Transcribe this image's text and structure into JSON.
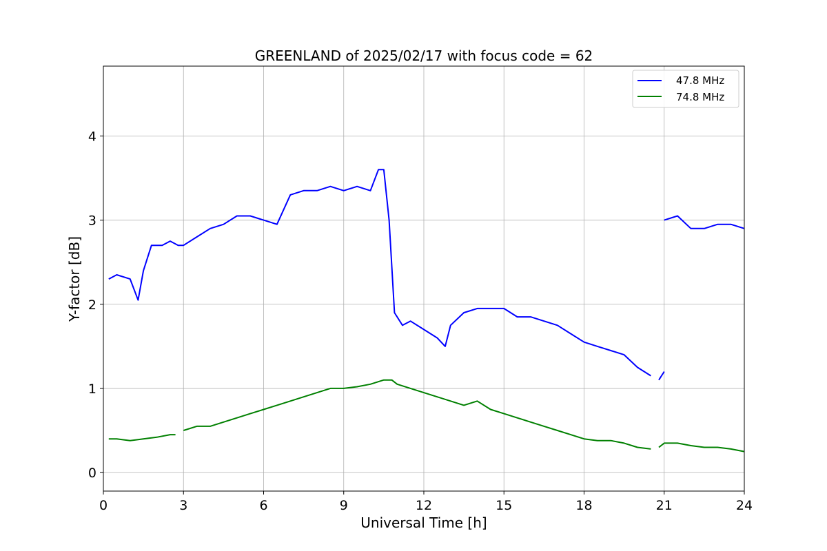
{
  "chart_data": {
    "type": "line",
    "title": "GREENLAND of 2025/02/17 with focus code = 62",
    "xlabel": "Universal Time [h]",
    "ylabel": "Y-factor [dB]",
    "xlim": [
      0,
      24
    ],
    "ylim": [
      -0.22,
      4.83
    ],
    "xticks": [
      "0",
      "3",
      "6",
      "9",
      "12",
      "15",
      "18",
      "21",
      "24"
    ],
    "yticks": [
      "0",
      "1",
      "2",
      "3",
      "4"
    ],
    "grid": true,
    "legend_position": "top-right",
    "series": [
      {
        "name": "47.8 MHz",
        "color": "#0000ff",
        "segments": [
          [
            [
              0.2,
              2.3
            ],
            [
              0.5,
              2.35
            ],
            [
              1.0,
              2.3
            ],
            [
              1.3,
              2.05
            ],
            [
              1.5,
              2.4
            ],
            [
              1.8,
              2.7
            ],
            [
              2.2,
              2.7
            ],
            [
              2.5,
              2.75
            ],
            [
              2.8,
              2.7
            ],
            [
              3.0,
              2.7
            ],
            [
              3.5,
              2.8
            ],
            [
              4.0,
              2.9
            ],
            [
              4.5,
              2.95
            ],
            [
              5.0,
              3.05
            ],
            [
              5.5,
              3.05
            ],
            [
              6.0,
              3.0
            ],
            [
              6.5,
              2.95
            ],
            [
              7.0,
              3.3
            ],
            [
              7.5,
              3.35
            ],
            [
              8.0,
              3.35
            ],
            [
              8.5,
              3.4
            ],
            [
              9.0,
              3.35
            ],
            [
              9.5,
              3.4
            ],
            [
              10.0,
              3.35
            ],
            [
              10.3,
              3.6
            ],
            [
              10.5,
              3.6
            ],
            [
              10.7,
              3.0
            ],
            [
              10.9,
              1.9
            ],
            [
              11.2,
              1.75
            ],
            [
              11.5,
              1.8
            ],
            [
              12.0,
              1.7
            ],
            [
              12.5,
              1.6
            ],
            [
              12.8,
              1.5
            ],
            [
              13.0,
              1.75
            ],
            [
              13.5,
              1.9
            ],
            [
              14.0,
              1.95
            ],
            [
              14.5,
              1.95
            ],
            [
              15.0,
              1.95
            ],
            [
              15.5,
              1.85
            ],
            [
              16.0,
              1.85
            ],
            [
              16.5,
              1.8
            ],
            [
              17.0,
              1.75
            ],
            [
              17.5,
              1.65
            ],
            [
              18.0,
              1.55
            ],
            [
              18.5,
              1.5
            ],
            [
              19.0,
              1.45
            ],
            [
              19.5,
              1.4
            ],
            [
              20.0,
              1.25
            ],
            [
              20.5,
              1.15
            ]
          ],
          [
            [
              20.8,
              1.1
            ],
            [
              21.0,
              1.2
            ]
          ],
          [
            [
              21.0,
              3.0
            ],
            [
              21.5,
              3.05
            ],
            [
              22.0,
              2.9
            ],
            [
              22.5,
              2.9
            ],
            [
              23.0,
              2.95
            ],
            [
              23.5,
              2.95
            ],
            [
              24.0,
              2.9
            ]
          ]
        ]
      },
      {
        "name": "74.8 MHz",
        "color": "#008000",
        "segments": [
          [
            [
              0.2,
              0.4
            ],
            [
              0.5,
              0.4
            ],
            [
              1.0,
              0.38
            ],
            [
              1.5,
              0.4
            ],
            [
              2.0,
              0.42
            ],
            [
              2.5,
              0.45
            ],
            [
              2.7,
              0.45
            ]
          ],
          [
            [
              3.0,
              0.5
            ],
            [
              3.5,
              0.55
            ],
            [
              4.0,
              0.55
            ],
            [
              4.5,
              0.6
            ],
            [
              5.0,
              0.65
            ],
            [
              5.5,
              0.7
            ],
            [
              6.0,
              0.75
            ],
            [
              6.5,
              0.8
            ],
            [
              7.0,
              0.85
            ],
            [
              7.5,
              0.9
            ],
            [
              8.0,
              0.95
            ],
            [
              8.5,
              1.0
            ],
            [
              9.0,
              1.0
            ],
            [
              9.5,
              1.02
            ],
            [
              10.0,
              1.05
            ],
            [
              10.5,
              1.1
            ],
            [
              10.8,
              1.1
            ],
            [
              11.0,
              1.05
            ],
            [
              11.5,
              1.0
            ],
            [
              12.0,
              0.95
            ],
            [
              12.5,
              0.9
            ],
            [
              13.0,
              0.85
            ],
            [
              13.5,
              0.8
            ],
            [
              14.0,
              0.85
            ],
            [
              14.5,
              0.75
            ],
            [
              15.0,
              0.7
            ],
            [
              15.5,
              0.65
            ],
            [
              16.0,
              0.6
            ],
            [
              16.5,
              0.55
            ],
            [
              17.0,
              0.5
            ],
            [
              17.5,
              0.45
            ],
            [
              18.0,
              0.4
            ],
            [
              18.5,
              0.38
            ],
            [
              19.0,
              0.38
            ],
            [
              19.5,
              0.35
            ],
            [
              20.0,
              0.3
            ],
            [
              20.5,
              0.28
            ]
          ],
          [
            [
              20.8,
              0.3
            ],
            [
              21.0,
              0.35
            ],
            [
              21.5,
              0.35
            ],
            [
              22.0,
              0.32
            ],
            [
              22.5,
              0.3
            ],
            [
              23.0,
              0.3
            ],
            [
              23.5,
              0.28
            ],
            [
              24.0,
              0.25
            ]
          ]
        ]
      }
    ]
  }
}
